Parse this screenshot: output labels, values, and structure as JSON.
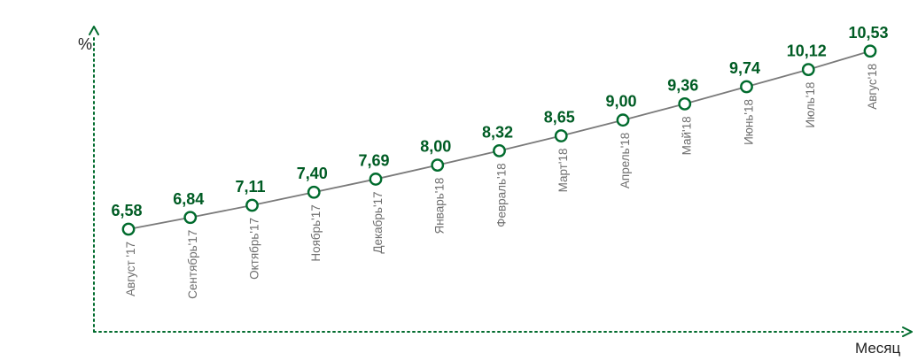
{
  "chart_data": {
    "type": "line",
    "ylabel": "%",
    "xlabel": "Месяц",
    "categories": [
      "Август '17",
      "Сентябрь'17",
      "Октябрь'17",
      "Ноябрь'17",
      "Декабрь'17",
      "Январь'18",
      "Февраль'18",
      "Март'18",
      "Апрель'18",
      "Май'18",
      "Июнь'18",
      "Июль'18",
      "Авгус'18"
    ],
    "values": [
      6.58,
      6.84,
      7.11,
      7.4,
      7.69,
      8.0,
      8.32,
      8.65,
      9.0,
      9.36,
      9.74,
      10.12,
      10.53
    ],
    "data_labels": [
      "6,58",
      "6,84",
      "7,11",
      "7,40",
      "7,69",
      "8,00",
      "8,32",
      "8,65",
      "9,00",
      "9,36",
      "9,74",
      "10,12",
      "10,53"
    ],
    "grid": false,
    "legend": "none",
    "colors": {
      "axis": "#006b2d",
      "line": "#7a7a7a",
      "marker": "#006b2d",
      "data_label": "#005c24",
      "category_label": "#6f6f6f"
    }
  }
}
